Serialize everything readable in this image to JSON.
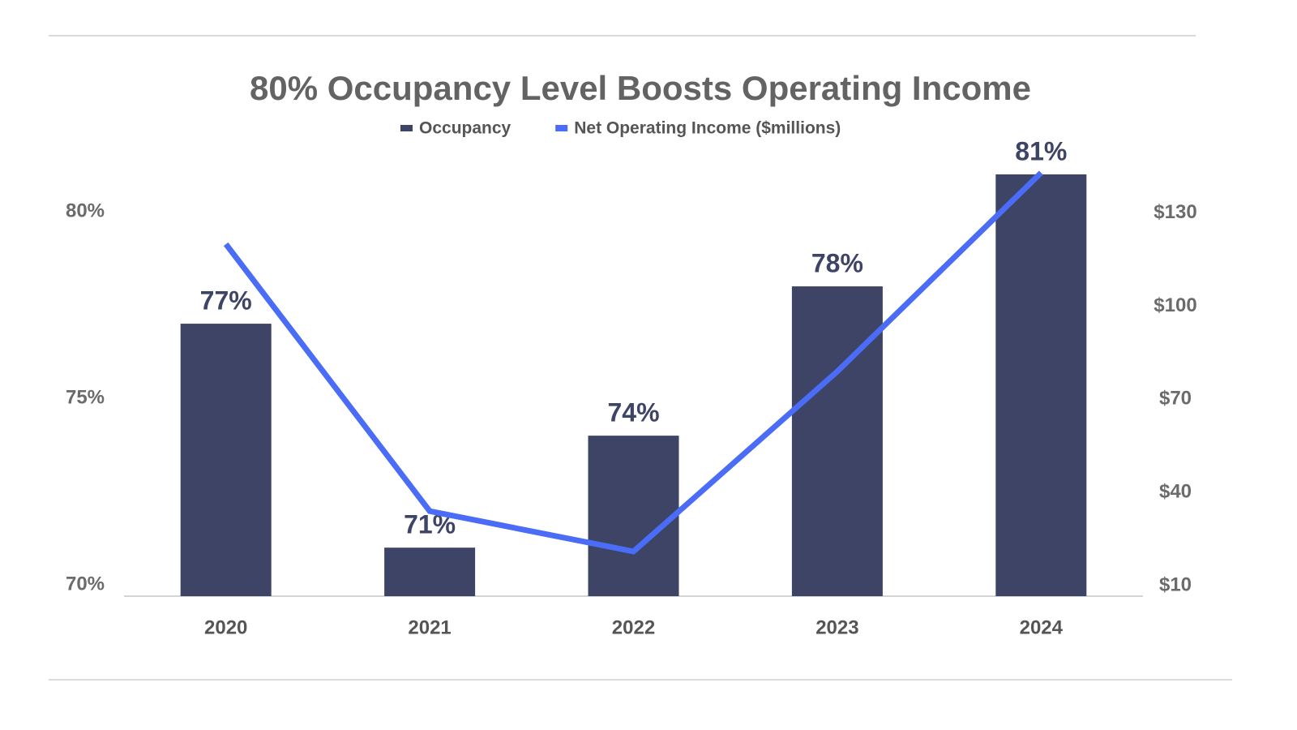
{
  "chart_data": {
    "type": "bar_line",
    "title": "80% Occupancy Level Boosts Operating Income",
    "categories": [
      "2020",
      "2021",
      "2022",
      "2023",
      "2024"
    ],
    "series": [
      {
        "name": "Occupancy",
        "type": "bar",
        "color": "#3d4466",
        "values": [
          77,
          71,
          74,
          78,
          81
        ],
        "value_labels": [
          "77%",
          "71%",
          "74%",
          "78%",
          "81%"
        ]
      },
      {
        "name": "Net Operating Income ($millions)",
        "type": "line",
        "axis": "y2",
        "color": "#4a6cf7",
        "values": [
          120,
          34,
          21,
          79,
          143
        ]
      }
    ],
    "ylim": [
      69.7,
      81.5
    ],
    "yticks": [
      {
        "value": 70,
        "label": "70%"
      },
      {
        "value": 75,
        "label": "75%"
      },
      {
        "value": 80,
        "label": "80%"
      }
    ],
    "y2lim": [
      6.6,
      148.5
    ],
    "y2ticks": [
      {
        "value": 10,
        "label": "$10"
      },
      {
        "value": 40,
        "label": "$40"
      },
      {
        "value": 70,
        "label": "$70"
      },
      {
        "value": 100,
        "label": "$100"
      },
      {
        "value": 130,
        "label": "$130"
      }
    ],
    "legend": "top",
    "grid": false
  }
}
